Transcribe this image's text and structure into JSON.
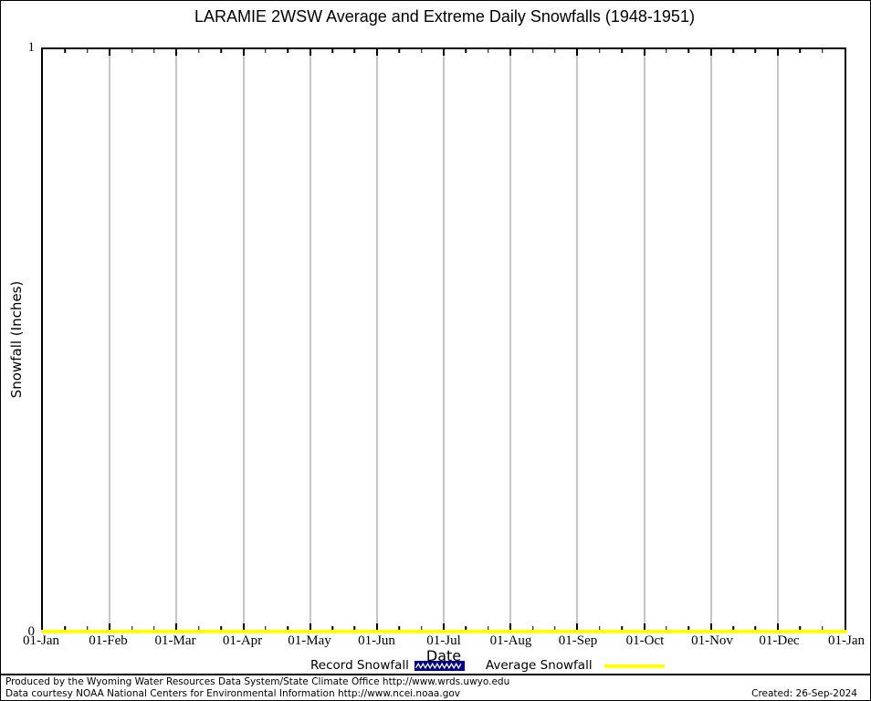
{
  "title": "LARAMIE 2WSW Average and Extreme Daily Snowfalls (1948-1951)",
  "chart_data": {
    "type": "line",
    "title": "LARAMIE 2WSW Average and Extreme Daily Snowfalls (1948-1951)",
    "xlabel": "Date",
    "ylabel": "Snowfall (Inches)",
    "ylim": [
      0,
      1
    ],
    "y_tick_labels": [
      "0",
      "1"
    ],
    "x_tick_labels": [
      "01-Jan",
      "01-Feb",
      "01-Mar",
      "01-Apr",
      "01-May",
      "01-Jun",
      "01-Jul",
      "01-Aug",
      "01-Sep",
      "01-Oct",
      "01-Nov",
      "01-Dec",
      "01-Jan"
    ],
    "minor_ticks_per_month": 2,
    "grid": "vertical gray gridlines at each month boundary, ticks mirrored on top axis",
    "legend_position": "below x-axis title",
    "series": [
      {
        "name": "Record Snowfall",
        "type": "filled-pattern",
        "color": "#000080",
        "pattern": "white zigzag hatch on navy",
        "values": [
          0,
          0,
          0,
          0,
          0,
          0,
          0,
          0,
          0,
          0,
          0,
          0,
          0
        ],
        "note": "no nonzero record snowfall plotted in chart area"
      },
      {
        "name": "Average Snowfall",
        "type": "line",
        "color": "#ffff00",
        "values": [
          0,
          0,
          0,
          0,
          0,
          0,
          0,
          0,
          0,
          0,
          0,
          0,
          0
        ],
        "note": "flat yellow line at 0 along entire x-axis"
      }
    ]
  },
  "legend": [
    {
      "label": "Record Snowfall"
    },
    {
      "label": "Average Snowfall"
    }
  ],
  "footer": {
    "line1": "Produced by the Wyoming Water Resources Data System/State Climate Office http://www.wrds.uwyo.edu",
    "line2": "Data courtesy NOAA National Centers for Environmental Information http://www.ncei.noaa.gov",
    "created": "Created: 26-Sep-2024"
  },
  "colors": {
    "axis": "#000000",
    "grid": "#c6c6c6",
    "record": "#000080",
    "average": "#ffff00",
    "background": "#ffffff"
  }
}
